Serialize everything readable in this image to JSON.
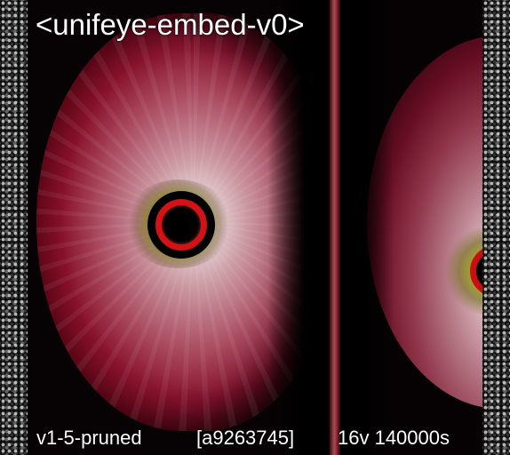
{
  "title": "<unifeye-embed-v0>",
  "footer": {
    "model": "v1-5-pruned",
    "hash": "[a9263745]",
    "steps": "16v 140000s"
  },
  "colors": {
    "iris_ring": "#d21214",
    "sclera": "#c85a72",
    "background": "#050505"
  }
}
